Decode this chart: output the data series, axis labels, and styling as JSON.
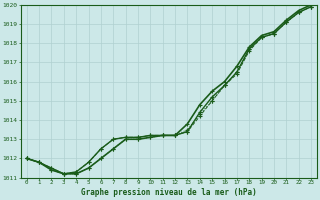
{
  "title": "Graphe pression niveau de la mer (hPa)",
  "background_color": "#cce8e8",
  "grid_color": "#b0d0d0",
  "line_color": "#1a5c1a",
  "x_ticks": [
    0,
    1,
    2,
    3,
    4,
    5,
    6,
    7,
    8,
    9,
    10,
    11,
    12,
    13,
    14,
    15,
    16,
    17,
    18,
    19,
    20,
    21,
    22,
    23
  ],
  "ylim": [
    1011,
    1020
  ],
  "yticks": [
    1011,
    1012,
    1013,
    1014,
    1015,
    1016,
    1017,
    1018,
    1019,
    1020
  ],
  "series": [
    {
      "values": [
        1012.0,
        1011.8,
        1011.5,
        1011.2,
        1011.3,
        1011.8,
        1012.5,
        1013.0,
        1013.1,
        1013.1,
        1013.2,
        1013.2,
        1013.2,
        1013.4,
        1014.4,
        1015.2,
        1015.8,
        1016.5,
        1017.7,
        1018.3,
        1018.5,
        1019.1,
        1019.6,
        1019.9
      ],
      "linestyle": "-",
      "linewidth": 1.0,
      "marker": "+"
    },
    {
      "values": [
        1012.0,
        1011.8,
        1011.5,
        1011.2,
        1011.3,
        1011.8,
        1012.5,
        1013.0,
        1013.1,
        1013.1,
        1013.2,
        1013.2,
        1013.2,
        1013.4,
        1014.2,
        1015.0,
        1015.8,
        1016.4,
        1017.6,
        1018.3,
        1018.5,
        1019.1,
        1019.6,
        1019.9
      ],
      "linestyle": "--",
      "linewidth": 0.7,
      "marker": "+"
    },
    {
      "values": [
        1012.0,
        1011.8,
        1011.4,
        1011.2,
        1011.2,
        1011.5,
        1012.0,
        1012.5,
        1013.0,
        1013.0,
        1013.1,
        1013.2,
        1013.2,
        1013.8,
        1014.8,
        1015.5,
        1016.0,
        1016.8,
        1017.8,
        1018.4,
        1018.6,
        1019.2,
        1019.7,
        1020.0
      ],
      "linestyle": "-",
      "linewidth": 1.2,
      "marker": "+"
    },
    {
      "values": [
        1012.0,
        1011.8,
        1011.4,
        1011.2,
        1011.2,
        1011.5,
        1012.0,
        1012.5,
        1013.0,
        1013.0,
        1013.1,
        1013.2,
        1013.2,
        1013.5,
        1014.3,
        1015.0,
        1015.8,
        1016.5,
        1017.7,
        1018.3,
        1018.5,
        1019.1,
        1019.6,
        1019.9
      ],
      "linestyle": ":",
      "linewidth": 0.7,
      "marker": "+"
    }
  ]
}
